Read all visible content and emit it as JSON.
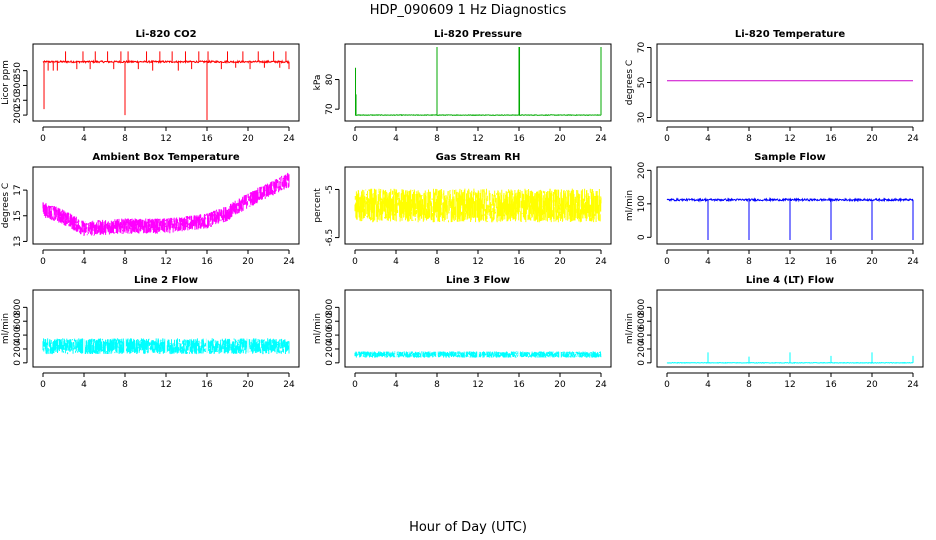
{
  "figure": {
    "title": "HDP_090609  1 Hz Diagnostics",
    "xlabel": "Hour of Day (UTC)"
  },
  "chart_data": [
    {
      "type": "line",
      "title": "Li-820 CO2",
      "ylabel": "Licor ppm",
      "color": "#ff0000",
      "xlim": [
        0,
        24
      ],
      "ylim": [
        180,
        440
      ],
      "xticks": [
        0,
        4,
        8,
        12,
        16,
        20,
        24
      ],
      "yticks": [
        200,
        250,
        300,
        350
      ],
      "baseline": 380,
      "noise": 6,
      "spikes": [
        [
          0.1,
          220
        ],
        [
          0.5,
          350
        ],
        [
          1.0,
          350
        ],
        [
          1.4,
          350
        ],
        [
          2.2,
          415
        ],
        [
          3.3,
          355
        ],
        [
          3.9,
          415
        ],
        [
          4.6,
          355
        ],
        [
          5.1,
          415
        ],
        [
          6.3,
          415
        ],
        [
          6.9,
          355
        ],
        [
          7.6,
          415
        ],
        [
          8.0,
          200
        ],
        [
          8.3,
          415
        ],
        [
          9.3,
          355
        ],
        [
          10.1,
          415
        ],
        [
          10.7,
          350
        ],
        [
          11.4,
          415
        ],
        [
          12.6,
          415
        ],
        [
          13.2,
          350
        ],
        [
          13.9,
          415
        ],
        [
          14.5,
          355
        ],
        [
          15.2,
          415
        ],
        [
          16.0,
          180
        ],
        [
          16.1,
          415
        ],
        [
          17.4,
          355
        ],
        [
          18.0,
          415
        ],
        [
          18.8,
          360
        ],
        [
          19.5,
          415
        ],
        [
          20.2,
          355
        ],
        [
          21.0,
          415
        ],
        [
          21.6,
          360
        ],
        [
          22.5,
          415
        ],
        [
          23.1,
          360
        ],
        [
          23.7,
          415
        ],
        [
          24.0,
          355
        ]
      ]
    },
    {
      "type": "line",
      "title": "Li-820 Pressure",
      "ylabel": "kPa",
      "color": "#00aa00",
      "xlim": [
        0,
        24
      ],
      "ylim": [
        66,
        92
      ],
      "xticks": [
        0,
        4,
        8,
        12,
        16,
        20,
        24
      ],
      "yticks": [
        70,
        80
      ],
      "baseline": 68,
      "noise": 0.2,
      "spikes": [
        [
          0.05,
          84
        ],
        [
          0.1,
          75
        ],
        [
          8.0,
          91
        ],
        [
          16.0,
          91
        ],
        [
          16.05,
          91
        ],
        [
          24.0,
          91
        ]
      ]
    },
    {
      "type": "line",
      "title": "Li-820 Temperature",
      "ylabel": "degrees C",
      "color": "#cc00cc",
      "xlim": [
        0,
        24
      ],
      "ylim": [
        28,
        72
      ],
      "xticks": [
        0,
        4,
        8,
        12,
        16,
        20,
        24
      ],
      "yticks": [
        30,
        50,
        70
      ],
      "baseline": 51,
      "noise": 0,
      "spikes": []
    },
    {
      "type": "line",
      "title": "Ambient Box Temperature",
      "ylabel": "degrees C",
      "color": "#ff00ff",
      "xlim": [
        0,
        24
      ],
      "ylim": [
        12.8,
        18.8
      ],
      "xticks": [
        0,
        4,
        8,
        12,
        16,
        20,
        24
      ],
      "yticks": [
        13,
        15,
        17
      ],
      "curve": [
        [
          0,
          15.5
        ],
        [
          2,
          14.9
        ],
        [
          4,
          14.0
        ],
        [
          8,
          14.2
        ],
        [
          12,
          14.2
        ],
        [
          16,
          14.6
        ],
        [
          18,
          15.2
        ],
        [
          20,
          16.2
        ],
        [
          22,
          17.0
        ],
        [
          24,
          17.8
        ]
      ],
      "band": 1.2
    },
    {
      "type": "line",
      "title": "Gas Stream RH",
      "ylabel": "percent",
      "color": "#ffff00",
      "xlim": [
        0,
        24
      ],
      "ylim": [
        -6.7,
        -4.3
      ],
      "xticks": [
        0,
        4,
        8,
        12,
        16,
        20,
        24
      ],
      "yticks": [
        -6.5,
        -5.0
      ],
      "curve": [
        [
          0,
          -5.5
        ],
        [
          24,
          -5.5
        ]
      ],
      "band": 1.05
    },
    {
      "type": "line",
      "title": "Sample Flow",
      "ylabel": "ml/min",
      "color": "#0000ff",
      "xlim": [
        0,
        24
      ],
      "ylim": [
        -20,
        210
      ],
      "xticks": [
        0,
        4,
        8,
        12,
        16,
        20,
        24
      ],
      "yticks": [
        0,
        100,
        200
      ],
      "baseline": 112,
      "noise": 6,
      "spikes": [
        [
          4.0,
          -8
        ],
        [
          8.0,
          -8
        ],
        [
          12.0,
          -8
        ],
        [
          16.0,
          -8
        ],
        [
          20.0,
          -8
        ],
        [
          24.0,
          -8
        ]
      ]
    },
    {
      "type": "line",
      "title": "Line 2 Flow",
      "ylabel": "ml/min",
      "color": "#00ffff",
      "xlim": [
        0,
        24
      ],
      "ylim": [
        -60,
        1050
      ],
      "xticks": [
        0,
        4,
        8,
        12,
        16,
        20,
        24
      ],
      "yticks": [
        0,
        200,
        400,
        600,
        800
      ],
      "curve": [
        [
          0,
          240
        ],
        [
          24,
          240
        ]
      ],
      "band": 230,
      "gaps": [
        4,
        8,
        12,
        16,
        20
      ]
    },
    {
      "type": "line",
      "title": "Line 3 Flow",
      "ylabel": "ml/min",
      "color": "#00ffff",
      "xlim": [
        0,
        24
      ],
      "ylim": [
        -60,
        1050
      ],
      "xticks": [
        0,
        4,
        8,
        12,
        16,
        20,
        24
      ],
      "yticks": [
        0,
        200,
        400,
        600,
        800
      ],
      "curve": [
        [
          0,
          120
        ],
        [
          24,
          120
        ]
      ],
      "band": 90,
      "gaps": [
        4,
        8,
        12,
        16,
        20
      ]
    },
    {
      "type": "line",
      "title": "Line 4 (LT) Flow",
      "ylabel": "ml/min",
      "color": "#00ffff",
      "xlim": [
        0,
        24
      ],
      "ylim": [
        -60,
        1050
      ],
      "xticks": [
        0,
        4,
        8,
        12,
        16,
        20,
        24
      ],
      "yticks": [
        0,
        200,
        400,
        600,
        800
      ],
      "baseline": 0,
      "noise": 8,
      "spikes": [
        [
          4.0,
          150
        ],
        [
          8.0,
          90
        ],
        [
          12.0,
          150
        ],
        [
          16.0,
          100
        ],
        [
          20.0,
          150
        ],
        [
          24.0,
          100
        ]
      ]
    }
  ]
}
